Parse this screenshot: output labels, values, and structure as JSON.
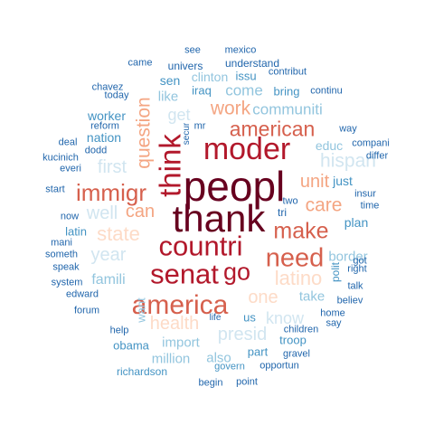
{
  "palette": {
    "c1": "#67001f",
    "c2": "#b2182b",
    "c3": "#d6604d",
    "c4": "#f4a582",
    "c5": "#fddbc7",
    "c6": "#d1e5f0",
    "c7": "#92c5de",
    "c8": "#4393c3",
    "c9": "#2166ac"
  },
  "words": [
    {
      "text": "peopl",
      "color": "c1"
    },
    {
      "text": "thank",
      "color": "c1"
    },
    {
      "text": "think",
      "color": "c2"
    },
    {
      "text": "moder",
      "color": "c2"
    },
    {
      "text": "countri",
      "color": "c2"
    },
    {
      "text": "senat",
      "color": "c2"
    },
    {
      "text": "go",
      "color": "c2"
    },
    {
      "text": "america",
      "color": "c3"
    },
    {
      "text": "need",
      "color": "c3"
    },
    {
      "text": "make",
      "color": "c3"
    },
    {
      "text": "immigr",
      "color": "c3"
    },
    {
      "text": "american",
      "color": "c3"
    },
    {
      "text": "question",
      "color": "c4"
    },
    {
      "text": "work",
      "color": "c4"
    },
    {
      "text": "state",
      "color": "c5"
    },
    {
      "text": "can",
      "color": "c4"
    },
    {
      "text": "care",
      "color": "c4"
    },
    {
      "text": "unit",
      "color": "c4"
    },
    {
      "text": "latino",
      "color": "c5"
    },
    {
      "text": "one",
      "color": "c5"
    },
    {
      "text": "health",
      "color": "c5"
    },
    {
      "text": "hispan",
      "color": "c6"
    },
    {
      "text": "first",
      "color": "c6"
    },
    {
      "text": "well",
      "color": "c6"
    },
    {
      "text": "year",
      "color": "c6"
    },
    {
      "text": "presid",
      "color": "c6"
    },
    {
      "text": "know",
      "color": "c6"
    },
    {
      "text": "get",
      "color": "c6"
    },
    {
      "text": "communiti",
      "color": "c7"
    },
    {
      "text": "come",
      "color": "c7"
    },
    {
      "text": "like",
      "color": "c7"
    },
    {
      "text": "famili",
      "color": "c7"
    },
    {
      "text": "take",
      "color": "c7"
    },
    {
      "text": "border",
      "color": "c7"
    },
    {
      "text": "import",
      "color": "c7"
    },
    {
      "text": "million",
      "color": "c7"
    },
    {
      "text": "also",
      "color": "c7"
    },
    {
      "text": "want",
      "color": "c7"
    },
    {
      "text": "educ",
      "color": "c7"
    },
    {
      "text": "clinton",
      "color": "c7"
    },
    {
      "text": "sen",
      "color": "c8"
    },
    {
      "text": "worker",
      "color": "c8"
    },
    {
      "text": "nation",
      "color": "c8"
    },
    {
      "text": "iraq",
      "color": "c8"
    },
    {
      "text": "bring",
      "color": "c8"
    },
    {
      "text": "issu",
      "color": "c8"
    },
    {
      "text": "just",
      "color": "c8"
    },
    {
      "text": "plan",
      "color": "c8"
    },
    {
      "text": "latin",
      "color": "c8"
    },
    {
      "text": "polit",
      "color": "c8"
    },
    {
      "text": "obama",
      "color": "c8"
    },
    {
      "text": "part",
      "color": "c8"
    },
    {
      "text": "us",
      "color": "c8"
    },
    {
      "text": "troop",
      "color": "c8"
    },
    {
      "text": "richardson",
      "color": "c8"
    },
    {
      "text": "govern",
      "color": "c8"
    },
    {
      "text": "understand",
      "color": "c9"
    },
    {
      "text": "univers",
      "color": "c9"
    },
    {
      "text": "see",
      "color": "c9"
    },
    {
      "text": "mexico",
      "color": "c9"
    },
    {
      "text": "came",
      "color": "c9"
    },
    {
      "text": "contribut",
      "color": "c9"
    },
    {
      "text": "chavez",
      "color": "c9"
    },
    {
      "text": "today",
      "color": "c9"
    },
    {
      "text": "continu",
      "color": "c9"
    },
    {
      "text": "reform",
      "color": "c9"
    },
    {
      "text": "way",
      "color": "c9"
    },
    {
      "text": "mr",
      "color": "c9"
    },
    {
      "text": "compani",
      "color": "c9"
    },
    {
      "text": "deal",
      "color": "c9"
    },
    {
      "text": "dodd",
      "color": "c9"
    },
    {
      "text": "secur",
      "color": "c9"
    },
    {
      "text": "kucinich",
      "color": "c9"
    },
    {
      "text": "everi",
      "color": "c9"
    },
    {
      "text": "differ",
      "color": "c9"
    },
    {
      "text": "start",
      "color": "c9"
    },
    {
      "text": "insur",
      "color": "c9"
    },
    {
      "text": "two",
      "color": "c9"
    },
    {
      "text": "time",
      "color": "c9"
    },
    {
      "text": "tri",
      "color": "c9"
    },
    {
      "text": "now",
      "color": "c9"
    },
    {
      "text": "mani",
      "color": "c9"
    },
    {
      "text": "someth",
      "color": "c9"
    },
    {
      "text": "speak",
      "color": "c9"
    },
    {
      "text": "right",
      "color": "c9"
    },
    {
      "text": "got",
      "color": "c9"
    },
    {
      "text": "system",
      "color": "c9"
    },
    {
      "text": "talk",
      "color": "c9"
    },
    {
      "text": "edward",
      "color": "c9"
    },
    {
      "text": "believ",
      "color": "c9"
    },
    {
      "text": "forum",
      "color": "c9"
    },
    {
      "text": "home",
      "color": "c9"
    },
    {
      "text": "say",
      "color": "c9"
    },
    {
      "text": "life",
      "color": "c9"
    },
    {
      "text": "help",
      "color": "c9"
    },
    {
      "text": "children",
      "color": "c9"
    },
    {
      "text": "gravel",
      "color": "c9"
    },
    {
      "text": "opportun",
      "color": "c9"
    },
    {
      "text": "begin",
      "color": "c9"
    },
    {
      "text": "point",
      "color": "c9"
    }
  ]
}
